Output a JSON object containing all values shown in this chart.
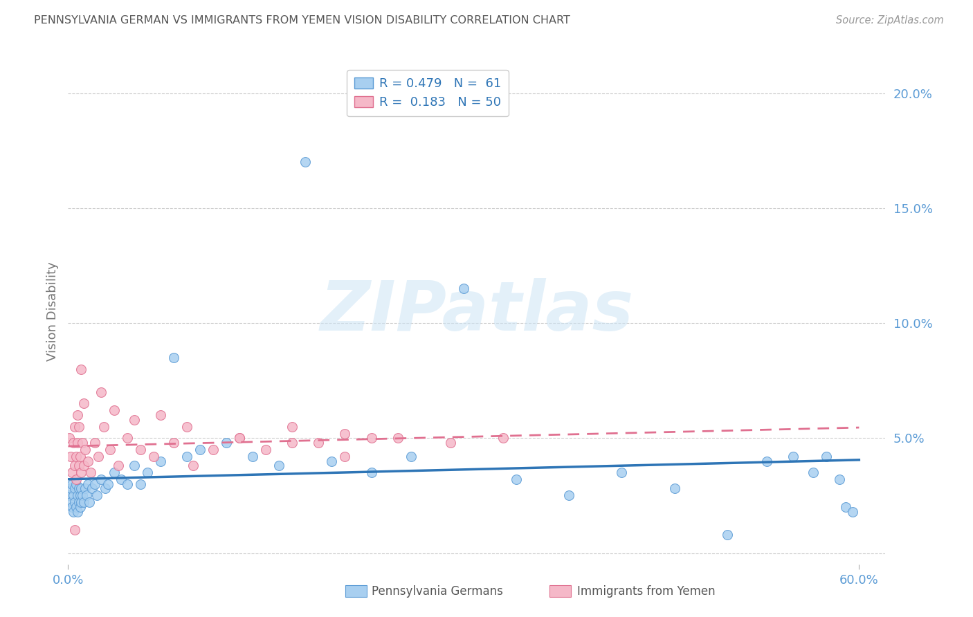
{
  "title": "PENNSYLVANIA GERMAN VS IMMIGRANTS FROM YEMEN VISION DISABILITY CORRELATION CHART",
  "source": "Source: ZipAtlas.com",
  "ylabel": "Vision Disability",
  "yticks": [
    0.0,
    0.05,
    0.1,
    0.15,
    0.2
  ],
  "ytick_labels": [
    "",
    "5.0%",
    "10.0%",
    "15.0%",
    "20.0%"
  ],
  "xlim": [
    0.0,
    0.62
  ],
  "ylim": [
    -0.005,
    0.215
  ],
  "series1_color": "#a8cff0",
  "series1_edge": "#5b9bd5",
  "series2_color": "#f5b8c8",
  "series2_edge": "#e07090",
  "line1_color": "#2e75b6",
  "line2_color": "#e07090",
  "series1_label": "Pennsylvania Germans",
  "series2_label": "Immigrants from Yemen",
  "background_color": "#ffffff",
  "grid_color": "#cccccc",
  "title_color": "#555555",
  "tick_color": "#5b9bd5",
  "watermark": "ZIPatlas",
  "series1_x": [
    0.001,
    0.002,
    0.002,
    0.003,
    0.003,
    0.004,
    0.004,
    0.005,
    0.005,
    0.006,
    0.006,
    0.007,
    0.007,
    0.008,
    0.008,
    0.009,
    0.009,
    0.01,
    0.01,
    0.011,
    0.012,
    0.013,
    0.014,
    0.015,
    0.016,
    0.018,
    0.02,
    0.022,
    0.025,
    0.028,
    0.03,
    0.035,
    0.04,
    0.045,
    0.05,
    0.055,
    0.06,
    0.07,
    0.08,
    0.09,
    0.1,
    0.12,
    0.14,
    0.16,
    0.18,
    0.2,
    0.23,
    0.26,
    0.3,
    0.34,
    0.38,
    0.42,
    0.46,
    0.5,
    0.53,
    0.55,
    0.565,
    0.575,
    0.585,
    0.59,
    0.595
  ],
  "series1_y": [
    0.025,
    0.022,
    0.028,
    0.02,
    0.03,
    0.018,
    0.025,
    0.022,
    0.028,
    0.02,
    0.03,
    0.018,
    0.025,
    0.022,
    0.028,
    0.02,
    0.025,
    0.022,
    0.028,
    0.025,
    0.022,
    0.028,
    0.025,
    0.03,
    0.022,
    0.028,
    0.03,
    0.025,
    0.032,
    0.028,
    0.03,
    0.035,
    0.032,
    0.03,
    0.038,
    0.03,
    0.035,
    0.04,
    0.085,
    0.042,
    0.045,
    0.048,
    0.042,
    0.038,
    0.17,
    0.04,
    0.035,
    0.042,
    0.115,
    0.032,
    0.025,
    0.035,
    0.028,
    0.008,
    0.04,
    0.042,
    0.035,
    0.042,
    0.032,
    0.02,
    0.018
  ],
  "series2_x": [
    0.001,
    0.002,
    0.003,
    0.004,
    0.005,
    0.005,
    0.006,
    0.006,
    0.007,
    0.007,
    0.008,
    0.008,
    0.009,
    0.01,
    0.011,
    0.012,
    0.013,
    0.015,
    0.017,
    0.02,
    0.023,
    0.027,
    0.032,
    0.038,
    0.045,
    0.055,
    0.065,
    0.08,
    0.095,
    0.11,
    0.13,
    0.15,
    0.17,
    0.19,
    0.21,
    0.23,
    0.01,
    0.012,
    0.025,
    0.035,
    0.05,
    0.07,
    0.09,
    0.13,
    0.17,
    0.21,
    0.25,
    0.29,
    0.33,
    0.005
  ],
  "series2_y": [
    0.05,
    0.042,
    0.035,
    0.048,
    0.038,
    0.055,
    0.032,
    0.042,
    0.048,
    0.06,
    0.038,
    0.055,
    0.042,
    0.035,
    0.048,
    0.038,
    0.045,
    0.04,
    0.035,
    0.048,
    0.042,
    0.055,
    0.045,
    0.038,
    0.05,
    0.045,
    0.042,
    0.048,
    0.038,
    0.045,
    0.05,
    0.045,
    0.055,
    0.048,
    0.042,
    0.05,
    0.08,
    0.065,
    0.07,
    0.062,
    0.058,
    0.06,
    0.055,
    0.05,
    0.048,
    0.052,
    0.05,
    0.048,
    0.05,
    0.01
  ]
}
